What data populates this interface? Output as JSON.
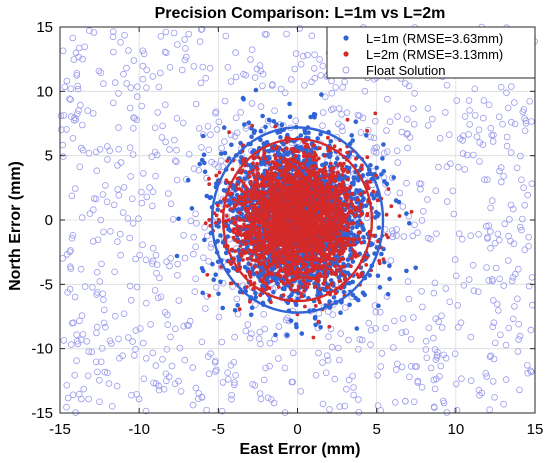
{
  "chart_data": {
    "type": "scatter",
    "title": "Precision Comparison: L=1m vs L=2m",
    "xlabel": "East Error (mm)",
    "ylabel": "North Error (mm)",
    "xlim": [
      -15,
      15
    ],
    "ylim": [
      -15,
      15
    ],
    "xticks": [
      -15,
      -10,
      -5,
      0,
      5,
      10,
      15
    ],
    "yticks": [
      -15,
      -10,
      -5,
      0,
      5,
      10,
      15
    ],
    "grid": true,
    "legend_position": "top-right",
    "series": [
      {
        "name": "L=1m (RMSE=3.63mm)",
        "marker": "filled-dot",
        "color": "#2f63d6",
        "center": [
          0,
          0
        ],
        "spread_std": [
          2.2,
          2.9
        ],
        "ellipse_semi_axes": [
          5.4,
          7.2
        ]
      },
      {
        "name": "L=2m (RMSE=3.13mm)",
        "marker": "filled-dot",
        "color": "#d42a2a",
        "center": [
          0,
          0
        ],
        "spread_std": [
          1.9,
          2.5
        ],
        "ellipse_semi_axes": [
          4.7,
          6.3
        ]
      },
      {
        "name": "Float Solution",
        "marker": "open-circle",
        "color": "#9a9aee",
        "distribution": "uniform",
        "range": [
          [
            -15,
            15
          ],
          [
            -15,
            15
          ]
        ]
      }
    ]
  }
}
